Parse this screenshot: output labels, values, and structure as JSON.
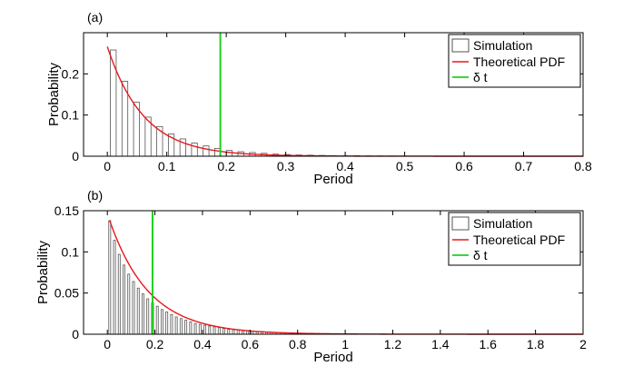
{
  "chart_data": [
    {
      "type": "bar",
      "panel_label": "(a)",
      "xlabel": "Period",
      "ylabel": "Probability",
      "xlim": [
        -0.04,
        0.8
      ],
      "ylim": [
        0,
        0.3
      ],
      "xticks": [
        0,
        0.1,
        0.2,
        0.3,
        0.4,
        0.5,
        0.6,
        0.7,
        0.8
      ],
      "xtick_labels": [
        "0",
        "0.1",
        "0.2",
        "0.3",
        "0.4",
        "0.5",
        "0.6",
        "0.7",
        "0.8"
      ],
      "yticks": [
        0,
        0.1,
        0.2
      ],
      "ytick_labels": [
        "0",
        "0.1",
        "0.2"
      ],
      "bin_width": 0.0195,
      "bar_fraction": 0.5,
      "bins_x": [
        0.01,
        0.0295,
        0.049,
        0.0685,
        0.088,
        0.1075,
        0.127,
        0.1465,
        0.166,
        0.1855,
        0.205,
        0.2245,
        0.244,
        0.2635,
        0.283,
        0.3025,
        0.322,
        0.3415,
        0.361,
        0.3805,
        0.4,
        0.4195,
        0.439,
        0.4585,
        0.478,
        0.4975
      ],
      "values": [
        0.258,
        0.182,
        0.131,
        0.095,
        0.072,
        0.054,
        0.042,
        0.032,
        0.025,
        0.019,
        0.014,
        0.011,
        0.009,
        0.007,
        0.005,
        0.004,
        0.003,
        0.0025,
        0.002,
        0.0015,
        0.001,
        0.001,
        0.0008,
        0.0006,
        0.0005,
        0.0004
      ],
      "pdf": {
        "amplitude": 0.266,
        "decay": 16.4,
        "x_start": 0.0,
        "x_end": 0.8
      },
      "delta_t_x": 0.19,
      "colors": {
        "bars": "#555555",
        "pdf": "#e8171c",
        "delta_t": "#20d020"
      },
      "legend": {
        "position": "top-right",
        "entries": [
          "Simulation",
          "Theoretical PDF",
          "δ t"
        ]
      }
    },
    {
      "type": "bar",
      "panel_label": "(b)",
      "xlabel": "Period",
      "ylabel": "Probability",
      "xlim": [
        -0.1,
        2.0
      ],
      "ylim": [
        0,
        0.15
      ],
      "xticks": [
        0,
        0.2,
        0.4,
        0.6,
        0.8,
        1.0,
        1.2,
        1.4,
        1.6,
        1.8,
        2.0
      ],
      "xtick_labels": [
        "0",
        "0.2",
        "0.4",
        "0.6",
        "0.8",
        "1",
        "1.2",
        "1.4",
        "1.6",
        "1.8",
        "2"
      ],
      "yticks": [
        0,
        0.05,
        0.1,
        0.15
      ],
      "ytick_labels": [
        "0",
        "0.05",
        "0.1",
        "0.15"
      ],
      "bin_width": 0.02,
      "bar_fraction": 0.4,
      "bins_x": [
        0.01,
        0.03,
        0.05,
        0.07,
        0.09,
        0.11,
        0.13,
        0.15,
        0.17,
        0.19,
        0.21,
        0.23,
        0.25,
        0.27,
        0.29,
        0.31,
        0.33,
        0.35,
        0.37,
        0.39,
        0.41,
        0.43,
        0.45,
        0.47,
        0.49,
        0.51,
        0.53,
        0.55,
        0.57,
        0.59,
        0.61,
        0.63,
        0.65,
        0.67,
        0.69,
        0.71,
        0.73,
        0.75,
        0.77,
        0.79,
        0.81,
        0.83,
        0.85,
        0.87,
        0.89,
        0.91,
        0.93,
        0.95,
        0.97,
        0.99
      ],
      "values": [
        0.138,
        0.114,
        0.097,
        0.084,
        0.073,
        0.064,
        0.056,
        0.049,
        0.043,
        0.038,
        0.034,
        0.03,
        0.027,
        0.024,
        0.021,
        0.019,
        0.017,
        0.015,
        0.013,
        0.012,
        0.011,
        0.01,
        0.009,
        0.008,
        0.007,
        0.006,
        0.0055,
        0.005,
        0.0045,
        0.004,
        0.0035,
        0.003,
        0.0028,
        0.0025,
        0.0022,
        0.002,
        0.0018,
        0.0016,
        0.0014,
        0.0013,
        0.0012,
        0.001,
        0.0009,
        0.0008,
        0.0007,
        0.0006,
        0.0005,
        0.0005,
        0.0004,
        0.0004
      ],
      "pdf": {
        "amplitude": 0.138,
        "decay": 6.0,
        "x_start": 0.01,
        "x_end": 2.0
      },
      "delta_t_x": 0.19,
      "colors": {
        "bars": "#555555",
        "pdf": "#e8171c",
        "delta_t": "#20d020"
      },
      "legend": {
        "position": "top-right",
        "entries": [
          "Simulation",
          "Theoretical PDF",
          "δ t"
        ]
      }
    }
  ]
}
